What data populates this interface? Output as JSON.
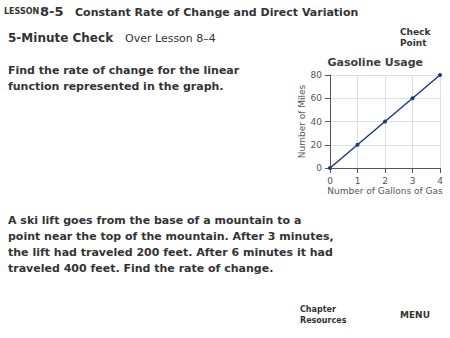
{
  "chart_data": {
    "type": "line",
    "title": "Gasoline Usage",
    "x": [
      0,
      1,
      2,
      3,
      4
    ],
    "values": [
      0,
      20,
      40,
      60,
      80
    ],
    "color": "#1a3a8a",
    "xlabel": "Number of Gallons of Gas",
    "ylabel": "Number of Miles",
    "xlim": [
      0,
      4
    ],
    "ylim": [
      0,
      80
    ],
    "xticks": [
      0,
      1,
      2,
      3,
      4
    ],
    "yticks": [
      0,
      20,
      40,
      60,
      80
    ],
    "grid": true,
    "marker": "circle",
    "annotations": [
      "Constant Rate of Change and Direct Variation",
      "LESSON",
      "8-5",
      "5-Minute Check",
      "Over Lesson 8–4",
      "Check",
      "Point",
      "Find the rate of change for the linear\nfunction represented in the graph.",
      "A ski lift goes from the base of a mountain to a\npoint near the top of the mountain. After 3 minutes,\nthe lift had traveled 200 feet. After 6 minutes it had\ntraveled 400 feet. Find the rate of change.",
      "Chapter\nResources",
      "MENU"
    ]
  }
}
